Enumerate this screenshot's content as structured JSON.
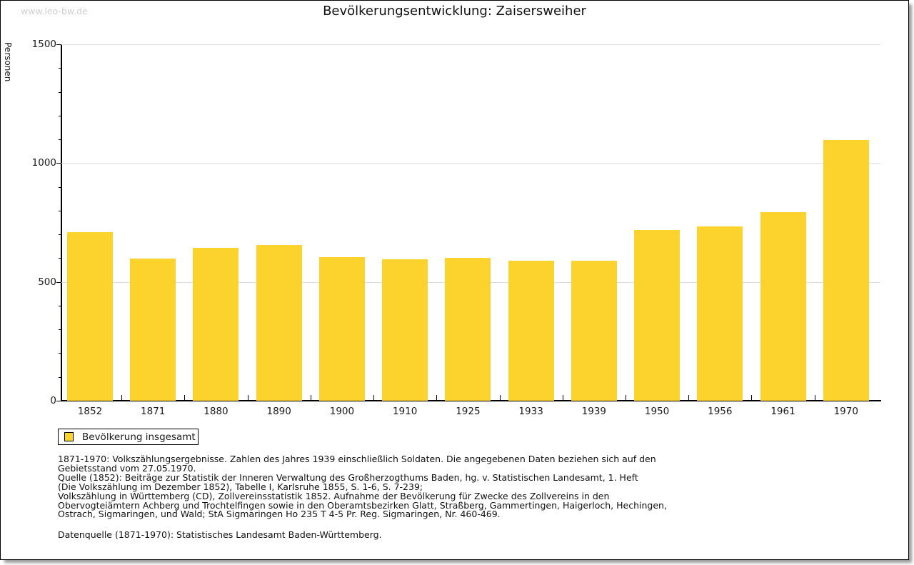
{
  "page": {
    "watermark": "www.leo-bw.de"
  },
  "chart_data": {
    "type": "bar",
    "title": "Bevölkerungsentwicklung: Zaisersweiher",
    "xlabel": "",
    "ylabel": "Personen",
    "categories": [
      "1852",
      "1871",
      "1880",
      "1890",
      "1900",
      "1910",
      "1925",
      "1933",
      "1939",
      "1950",
      "1956",
      "1961",
      "1970"
    ],
    "values": [
      708,
      598,
      643,
      655,
      605,
      596,
      602,
      590,
      589,
      718,
      734,
      795,
      1096
    ],
    "ylim": [
      0,
      1500
    ],
    "yticks": [
      0,
      500,
      1000,
      1500
    ],
    "minor_tick_step": 100,
    "grid": true,
    "bar_color": "#FCD32D",
    "legend": {
      "label": "Bevölkerung insgesamt",
      "position": "bottom-left"
    }
  },
  "footer": {
    "source_lines": [
      "1871-1970: Volkszählungsergebnisse. Zahlen des Jahres 1939 einschließlich Soldaten. Die angegebenen Daten beziehen sich auf den",
      "Gebietsstand vom 27.05.1970.",
      "Quelle (1852): Beiträge zur Statistik der Inneren Verwaltung des Großherzogthums Baden, hg. v. Statistischen Landesamt, 1. Heft",
      "(Die Volkszählung im Dezember 1852), Tabelle I, Karlsruhe 1855, S. 1-6, S. 7-239;",
      "Volkszählung in Württemberg (CD), Zollvereinsstatistik 1852. Aufnahme der Bevölkerung für Zwecke des Zollvereins in den",
      "Obervogteiämtern Achberg und Trochtelfingen sowie in den Oberamtsbezirken Glatt, Straßberg, Gammertingen, Haigerloch, Hechingen,",
      "Ostrach, Sigmaringen, und Wald; StA Sigmaringen Ho 235 T 4-5 Pr. Reg. Sigmaringen, Nr. 460-469."
    ],
    "datasource": "Datenquelle (1871-1970): Statistisches Landesamt Baden-Württemberg."
  }
}
